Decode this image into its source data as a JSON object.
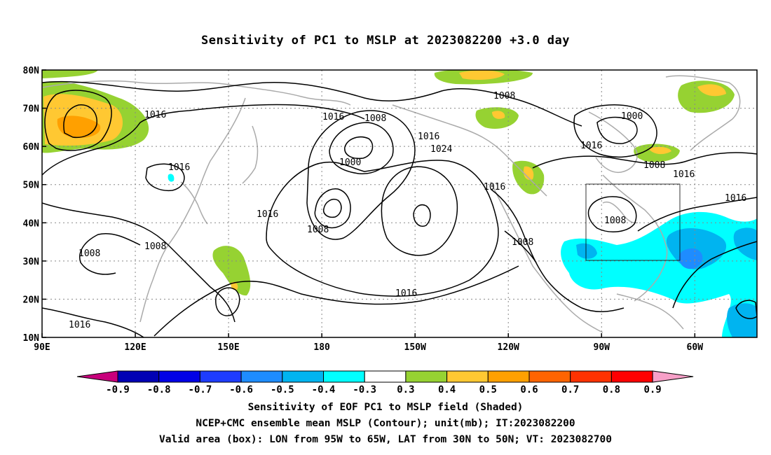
{
  "title": "Sensitivity of PC1 to MSLP at 2023082200 +3.0 day",
  "map": {
    "projection": "cylindrical-equidistant",
    "lon_range": [
      "90E",
      "40W"
    ],
    "lat_range": [
      "10N",
      "80N"
    ],
    "lat_ticks": [
      "80N",
      "70N",
      "60N",
      "50N",
      "40N",
      "30N",
      "20N",
      "10N"
    ],
    "lon_ticks": [
      "90E",
      "120E",
      "150E",
      "180",
      "150W",
      "120W",
      "90W",
      "60W"
    ],
    "gridlines": "dotted",
    "coastlines_color": "#aaaaaa",
    "valid_box": {
      "lon": [
        "95W",
        "65W"
      ],
      "lat": [
        "30N",
        "50N"
      ]
    },
    "contour_labels": [
      "1016",
      "1016",
      "1008",
      "1008",
      "1016",
      "1000",
      "1016",
      "1024",
      "1016",
      "1016",
      "1016",
      "1008",
      "1008",
      "1008",
      "1000",
      "1016",
      "1008",
      "1016",
      "1016",
      "1008",
      "1008",
      "1016"
    ]
  },
  "colorbar": {
    "labels": [
      "-0.9",
      "-0.8",
      "-0.7",
      "-0.6",
      "-0.5",
      "-0.4",
      "-0.3",
      "0.3",
      "0.4",
      "0.5",
      "0.6",
      "0.7",
      "0.8",
      "0.9"
    ],
    "colors": [
      "#c8007c",
      "#0000b4",
      "#0000e6",
      "#1e3cff",
      "#1e8cff",
      "#00b4f0",
      "#00ffff",
      "#ffffff",
      "#96d232",
      "#ffc832",
      "#ffa000",
      "#ff6400",
      "#ff3200",
      "#ff0000",
      "#f7a0c8"
    ]
  },
  "captions": [
    "Sensitivity of EOF PC1 to MSLP field (Shaded)",
    "NCEP+CMC ensemble mean MSLP (Contour); unit(mb); IT:2023082200",
    "Valid area (box): LON from 95W to 65W, LAT from 30N to 50N; VT: 2023082700"
  ]
}
